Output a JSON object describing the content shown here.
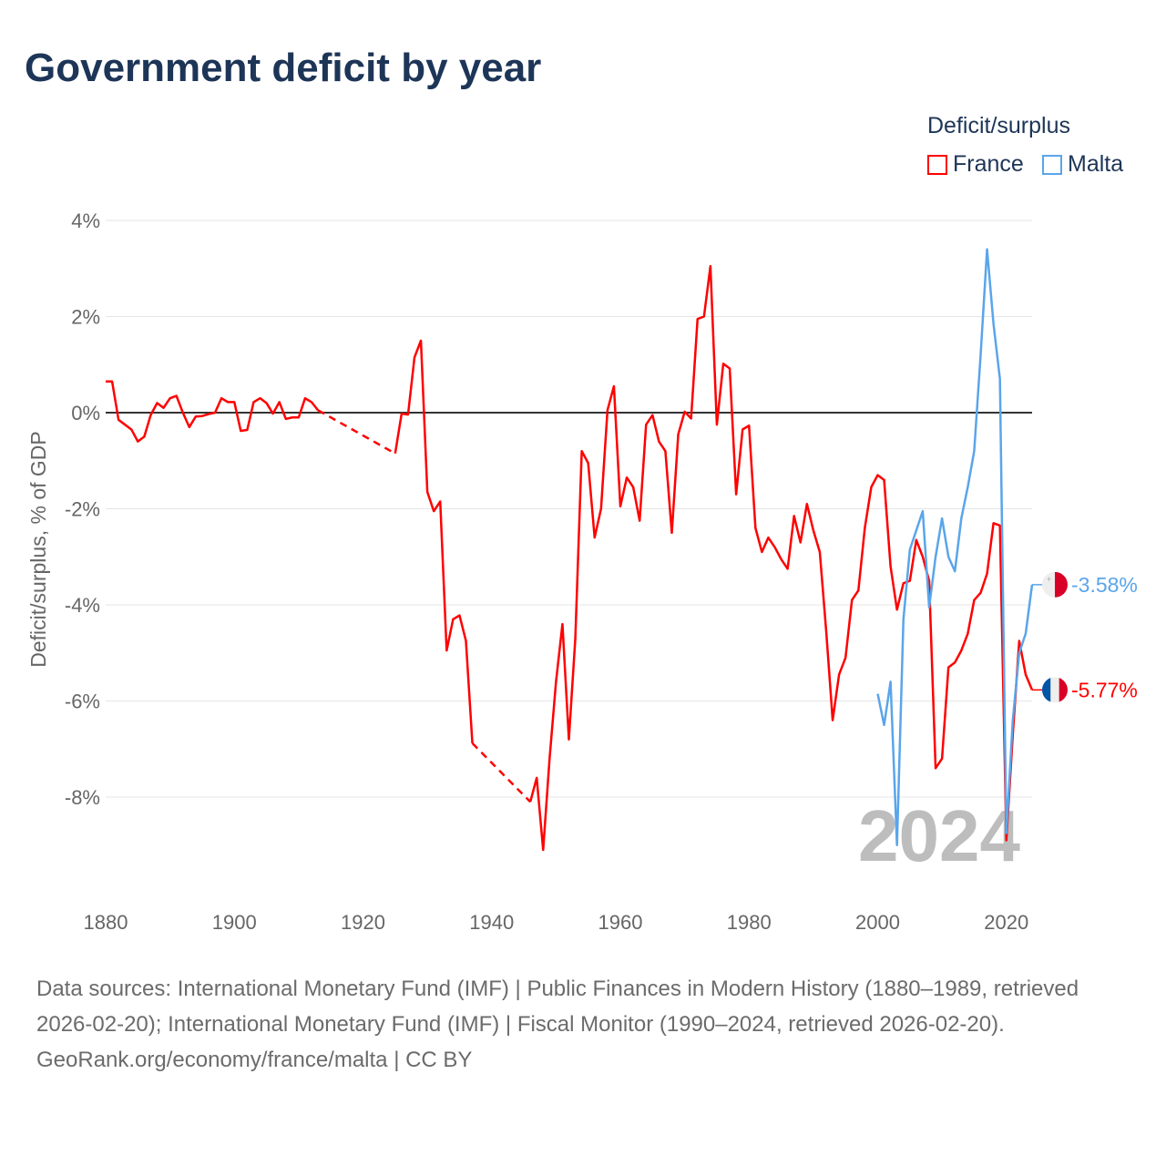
{
  "title": "Government deficit by year",
  "legend": {
    "title": "Deficit/surplus",
    "items": [
      {
        "label": "France",
        "color": "#ff0000"
      },
      {
        "label": "Malta",
        "color": "#5aa5ea"
      }
    ]
  },
  "year_watermark": "2024",
  "footer": {
    "sources": "Data sources: International Monetary Fund (IMF) | Public Finances in Modern History (1880–1989, retrieved 2026-02-20); International Monetary Fund (IMF) | Fiscal Monitor (1990–2024, retrieved 2026-02-20).",
    "credit": "GeoRank.org/economy/france/malta | CC BY"
  },
  "chart_data": {
    "type": "line",
    "title": "Government deficit by year",
    "xlabel": "",
    "ylabel": "Deficit/surplus, % of GDP",
    "xlim": [
      1880,
      2024
    ],
    "ylim": [
      -9.7,
      4
    ],
    "x_ticks": [
      "1880",
      "1900",
      "1920",
      "1940",
      "1960",
      "1980",
      "2000",
      "2020"
    ],
    "y_ticks": [
      "4%",
      "2%",
      "0%",
      "-2%",
      "-4%",
      "-6%",
      "-8%"
    ],
    "y_tick_values": [
      4,
      2,
      0,
      -2,
      -4,
      -6,
      -8
    ],
    "x_tick_values": [
      1880,
      1900,
      1920,
      1940,
      1960,
      1980,
      2000,
      2020
    ],
    "grid": true,
    "legend_position": "top-right",
    "x_start": 1880,
    "series": [
      {
        "name": "France",
        "color": "#ff0000",
        "end_label": "-5.77%",
        "values": [
          0.65,
          0.65,
          -0.15,
          -0.25,
          -0.35,
          -0.6,
          -0.5,
          -0.05,
          0.2,
          0.1,
          0.3,
          0.35,
          0.0,
          -0.3,
          -0.08,
          -0.07,
          -0.03,
          0.0,
          0.3,
          0.22,
          0.22,
          -0.38,
          -0.36,
          0.22,
          0.3,
          0.2,
          -0.02,
          0.22,
          -0.13,
          -0.1,
          -0.1,
          0.3,
          0.22,
          0.05,
          null,
          null,
          null,
          null,
          null,
          null,
          null,
          null,
          null,
          null,
          null,
          -0.85,
          -0.02,
          -0.04,
          1.15,
          1.5,
          -1.65,
          -2.05,
          -1.85,
          -4.95,
          -4.3,
          -4.22,
          -4.75,
          -6.88,
          null,
          null,
          null,
          null,
          null,
          null,
          null,
          null,
          -8.1,
          -7.6,
          -9.1,
          -7.2,
          -5.6,
          -4.4,
          -6.8,
          -4.7,
          -0.8,
          -1.05,
          -2.6,
          -2.0,
          0.05,
          0.55,
          -1.95,
          -1.35,
          -1.55,
          -2.25,
          -0.25,
          -0.05,
          -0.6,
          -0.8,
          -2.5,
          -0.45,
          0.02,
          -0.12,
          1.95,
          2.0,
          3.05,
          -0.25,
          1.02,
          0.92,
          -1.7,
          -0.35,
          -0.27,
          -2.4,
          -2.9,
          -2.6,
          -2.8,
          -3.05,
          -3.25,
          -2.15,
          -2.7,
          -1.9,
          -2.45,
          -2.9,
          -4.55,
          -6.4,
          -5.45,
          -5.1,
          -3.9,
          -3.7,
          -2.4,
          -1.55,
          -1.3,
          -1.4,
          -3.2,
          -4.1,
          -3.55,
          -3.5,
          -2.65,
          -3.0,
          -3.5,
          -7.4,
          -7.2,
          -5.3,
          -5.2,
          -4.95,
          -4.6,
          -3.9,
          -3.75,
          -3.35,
          -2.3,
          -2.35,
          -8.9,
          -6.7,
          -4.75,
          -5.45,
          -5.77
        ]
      },
      {
        "name": "Malta",
        "color": "#5aa5ea",
        "end_label": "-3.58%",
        "start_year": 2000,
        "values": [
          -5.85,
          -6.5,
          -5.6,
          -9.0,
          -4.3,
          -2.85,
          -2.45,
          -2.05,
          -4.05,
          -3.0,
          -2.2,
          -3.0,
          -3.3,
          -2.2,
          -1.55,
          -0.8,
          1.2,
          3.4,
          1.85,
          0.7,
          -8.75,
          -6.4,
          -5.0,
          -4.6,
          -3.58
        ]
      }
    ]
  }
}
